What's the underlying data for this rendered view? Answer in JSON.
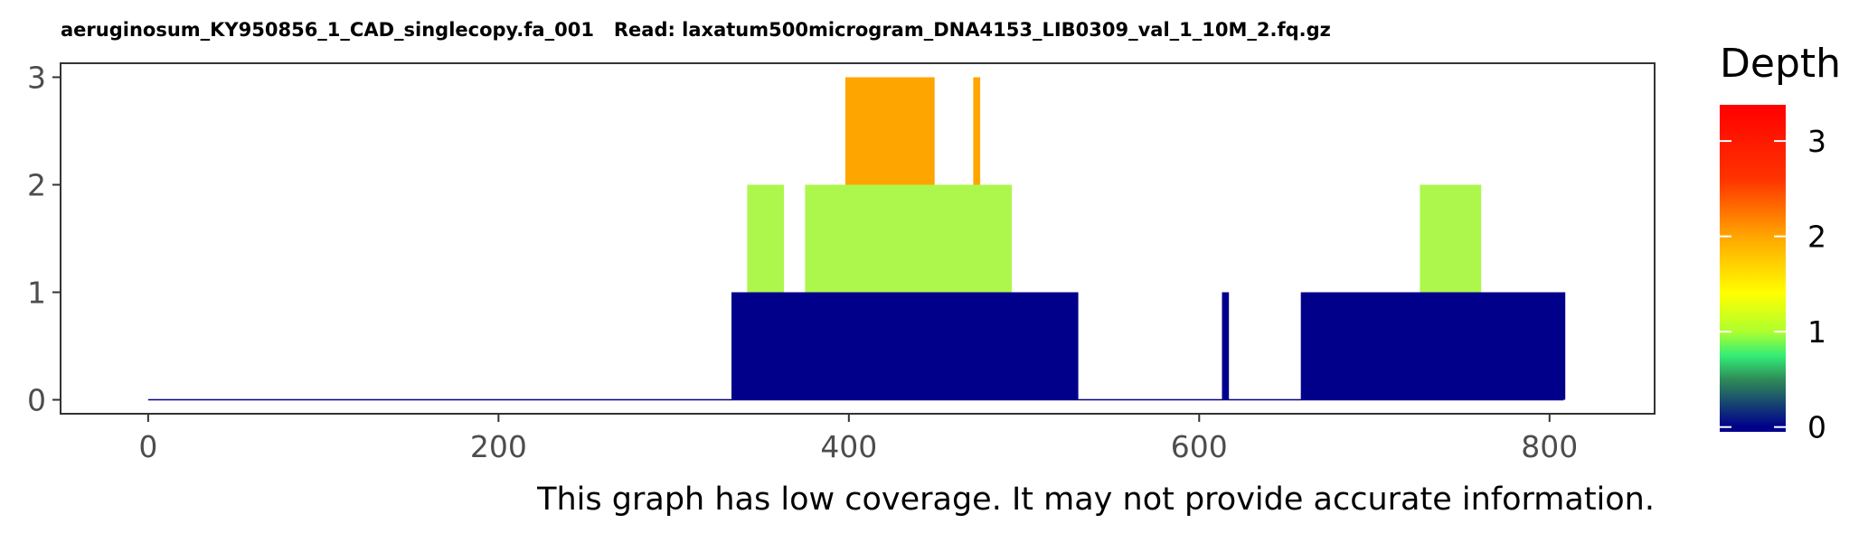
{
  "chart_data": {
    "type": "area",
    "title": "aeruginosum_KY950856_1_CAD_singlecopy.fa_001   Read: laxatum500microgram_DNA4153_LIB0309_val_1_10M_2.fq.gz",
    "caption": "This graph has low coverage. It may not provide accurate information.",
    "xlim": [
      -50,
      860
    ],
    "ylim": [
      -0.13,
      3.13
    ],
    "x_ticks": [
      0,
      200,
      400,
      600,
      800
    ],
    "y_ticks": [
      0,
      1,
      2,
      3
    ],
    "grid": false,
    "baseline": {
      "x_start": 0,
      "x_end": 808,
      "color": "#00008B"
    },
    "segments": [
      {
        "depth": 1,
        "x_start": 333,
        "x_end": 531,
        "color": "#00008B"
      },
      {
        "depth": 1,
        "x_start": 613,
        "x_end": 617,
        "color": "#00008B"
      },
      {
        "depth": 1,
        "x_start": 658,
        "x_end": 809,
        "color": "#00008B"
      },
      {
        "depth": 2,
        "x_start": 342,
        "x_end": 363,
        "color": "#ADF74D"
      },
      {
        "depth": 2,
        "x_start": 375,
        "x_end": 493,
        "color": "#ADF74D"
      },
      {
        "depth": 2,
        "x_start": 726,
        "x_end": 761,
        "color": "#ADF74D"
      },
      {
        "depth": 3,
        "x_start": 398,
        "x_end": 449,
        "color": "#FFA500"
      },
      {
        "depth": 3,
        "x_start": 471,
        "x_end": 475,
        "color": "#FFA500"
      }
    ],
    "legend": {
      "title": "Depth",
      "placement": "right",
      "range": [
        -0.05,
        3.38
      ],
      "ticks": [
        0,
        1,
        2,
        3
      ],
      "gradient": [
        {
          "value": 0,
          "color": "#00008B"
        },
        {
          "value": 0.5,
          "color": "#2E8B57"
        },
        {
          "value": 0.75,
          "color": "#33EE77"
        },
        {
          "value": 1,
          "color": "#ADFF2F"
        },
        {
          "value": 1.4,
          "color": "#FFFF00"
        },
        {
          "value": 2,
          "color": "#FFA500"
        },
        {
          "value": 2.6,
          "color": "#FF3300"
        },
        {
          "value": 3.38,
          "color": "#FF0000"
        }
      ]
    }
  }
}
